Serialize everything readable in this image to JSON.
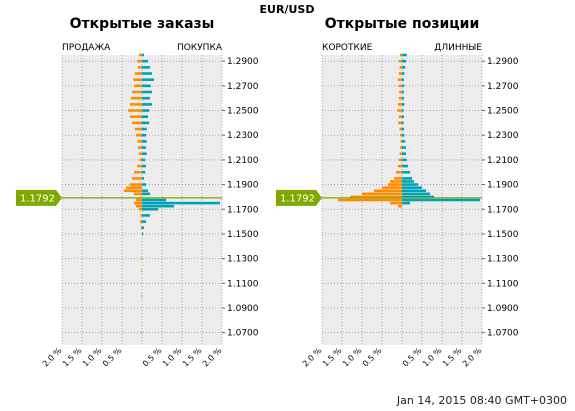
{
  "symbol": "EUR/USD",
  "timestamp": "Jan 14, 2015 08:40 GMT+0300",
  "colors": {
    "left_side": "#ff8c00",
    "right_side": "#00a2b5",
    "price_tag": "#7fa800",
    "plot_bg": "#ececec",
    "grid": "#9a9a9a"
  },
  "chart_data": [
    {
      "type": "bar",
      "orientation": "horizontal",
      "title": "Открытые заказы",
      "left_label": "ПРОДАЖА",
      "right_label": "ПОКУПКА",
      "current_price_label": "1.1792",
      "current_price": 1.1792,
      "y_ticks": [
        "1.2900",
        "1.2700",
        "1.2500",
        "1.2300",
        "1.2100",
        "1.1900",
        "1.1700",
        "1.1500",
        "1.1300",
        "1.1100",
        "1.0900",
        "1.0700"
      ],
      "y_range": [
        1.06,
        1.295
      ],
      "x_ticks": [
        "2.0 %",
        "1.5 %",
        "1.0 %",
        "0.5 %",
        "",
        "0.5 %",
        "1.0 %",
        "1.5 %",
        "2.0 %"
      ],
      "x_range": [
        -2.0,
        2.0
      ],
      "grid": true,
      "series": [
        {
          "name": "ПРОДАЖА",
          "side": "left",
          "points": [
            [
              1.295,
              0.08
            ],
            [
              1.29,
              0.12
            ],
            [
              1.285,
              0.1
            ],
            [
              1.28,
              0.18
            ],
            [
              1.275,
              0.22
            ],
            [
              1.27,
              0.2
            ],
            [
              1.265,
              0.25
            ],
            [
              1.26,
              0.28
            ],
            [
              1.255,
              0.3
            ],
            [
              1.25,
              0.35
            ],
            [
              1.245,
              0.3
            ],
            [
              1.24,
              0.25
            ],
            [
              1.235,
              0.18
            ],
            [
              1.23,
              0.15
            ],
            [
              1.225,
              0.12
            ],
            [
              1.22,
              0.1
            ],
            [
              1.215,
              0.08
            ],
            [
              1.21,
              0.06
            ],
            [
              1.205,
              0.12
            ],
            [
              1.2,
              0.2
            ],
            [
              1.195,
              0.25
            ],
            [
              1.19,
              0.3
            ],
            [
              1.1875,
              0.4
            ],
            [
              1.185,
              0.45
            ],
            [
              1.1825,
              0.2
            ],
            [
              1.1775,
              0.15
            ],
            [
              1.175,
              0.2
            ],
            [
              1.1725,
              0.15
            ],
            [
              1.17,
              0.08
            ],
            [
              1.165,
              0.04
            ],
            [
              1.16,
              0.05
            ],
            [
              1.155,
              0.03
            ],
            [
              1.13,
              0.02
            ],
            [
              1.12,
              0.02
            ],
            [
              1.1,
              0.02
            ],
            [
              1.07,
              0.02
            ]
          ]
        },
        {
          "name": "ПОКУПКА",
          "side": "right",
          "points": [
            [
              1.295,
              0.05
            ],
            [
              1.29,
              0.15
            ],
            [
              1.285,
              0.2
            ],
            [
              1.28,
              0.25
            ],
            [
              1.275,
              0.3
            ],
            [
              1.27,
              0.22
            ],
            [
              1.265,
              0.25
            ],
            [
              1.26,
              0.2
            ],
            [
              1.255,
              0.25
            ],
            [
              1.25,
              0.18
            ],
            [
              1.245,
              0.15
            ],
            [
              1.24,
              0.18
            ],
            [
              1.235,
              0.12
            ],
            [
              1.23,
              0.1
            ],
            [
              1.225,
              0.12
            ],
            [
              1.22,
              0.1
            ],
            [
              1.215,
              0.12
            ],
            [
              1.21,
              0.08
            ],
            [
              1.205,
              0.1
            ],
            [
              1.2,
              0.08
            ],
            [
              1.195,
              0.05
            ],
            [
              1.19,
              0.1
            ],
            [
              1.185,
              0.15
            ],
            [
              1.1825,
              0.2
            ],
            [
              1.1775,
              0.6
            ],
            [
              1.175,
              1.95
            ],
            [
              1.1725,
              0.8
            ],
            [
              1.17,
              0.4
            ],
            [
              1.165,
              0.2
            ],
            [
              1.16,
              0.1
            ],
            [
              1.155,
              0.05
            ],
            [
              1.15,
              0.03
            ]
          ]
        }
      ]
    },
    {
      "type": "bar",
      "orientation": "horizontal",
      "title": "Открытые позиции",
      "left_label": "КОРОТКИЕ",
      "right_label": "ДЛИННЫЕ",
      "current_price_label": "1.1792",
      "current_price": 1.1792,
      "y_ticks": [
        "1.2900",
        "1.2700",
        "1.2500",
        "1.2300",
        "1.2100",
        "1.1900",
        "1.1700",
        "1.1500",
        "1.1300",
        "1.1100",
        "1.0900",
        "1.0700"
      ],
      "y_range": [
        1.06,
        1.295
      ],
      "x_ticks": [
        "2.0 %",
        "1.5 %",
        "1.0 %",
        "0.5 %",
        "",
        "0.5 %",
        "1.0 %",
        "1.5 %",
        "2.0 %"
      ],
      "x_range": [
        -2.0,
        2.0
      ],
      "grid": true,
      "series": [
        {
          "name": "КОРОТКИЕ",
          "side": "left",
          "points": [
            [
              1.295,
              0.05
            ],
            [
              1.29,
              0.08
            ],
            [
              1.285,
              0.06
            ],
            [
              1.28,
              0.08
            ],
            [
              1.275,
              0.1
            ],
            [
              1.27,
              0.08
            ],
            [
              1.265,
              0.07
            ],
            [
              1.26,
              0.08
            ],
            [
              1.255,
              0.1
            ],
            [
              1.25,
              0.12
            ],
            [
              1.245,
              0.08
            ],
            [
              1.24,
              0.1
            ],
            [
              1.235,
              0.06
            ],
            [
              1.23,
              0.05
            ],
            [
              1.225,
              0.04
            ],
            [
              1.22,
              0.05
            ],
            [
              1.215,
              0.06
            ],
            [
              1.21,
              0.08
            ],
            [
              1.205,
              0.1
            ],
            [
              1.2,
              0.15
            ],
            [
              1.195,
              0.2
            ],
            [
              1.1925,
              0.3
            ],
            [
              1.19,
              0.35
            ],
            [
              1.1875,
              0.5
            ],
            [
              1.185,
              0.7
            ],
            [
              1.1825,
              1.0
            ],
            [
              1.18,
              1.3
            ],
            [
              1.1775,
              1.6
            ],
            [
              1.175,
              0.3
            ],
            [
              1.1725,
              0.1
            ]
          ]
        },
        {
          "name": "ДЛИННЫЕ",
          "side": "right",
          "points": [
            [
              1.295,
              0.12
            ],
            [
              1.29,
              0.1
            ],
            [
              1.285,
              0.08
            ],
            [
              1.28,
              0.06
            ],
            [
              1.275,
              0.05
            ],
            [
              1.27,
              0.06
            ],
            [
              1.265,
              0.05
            ],
            [
              1.26,
              0.05
            ],
            [
              1.255,
              0.06
            ],
            [
              1.25,
              0.04
            ],
            [
              1.245,
              0.05
            ],
            [
              1.24,
              0.04
            ],
            [
              1.235,
              0.05
            ],
            [
              1.23,
              0.06
            ],
            [
              1.225,
              0.08
            ],
            [
              1.22,
              0.1
            ],
            [
              1.215,
              0.1
            ],
            [
              1.21,
              0.12
            ],
            [
              1.205,
              0.15
            ],
            [
              1.2,
              0.2
            ],
            [
              1.195,
              0.25
            ],
            [
              1.1925,
              0.3
            ],
            [
              1.19,
              0.4
            ],
            [
              1.1875,
              0.5
            ],
            [
              1.185,
              0.6
            ],
            [
              1.1825,
              0.7
            ],
            [
              1.18,
              0.8
            ],
            [
              1.1775,
              1.95
            ],
            [
              1.175,
              0.2
            ]
          ]
        }
      ]
    }
  ]
}
